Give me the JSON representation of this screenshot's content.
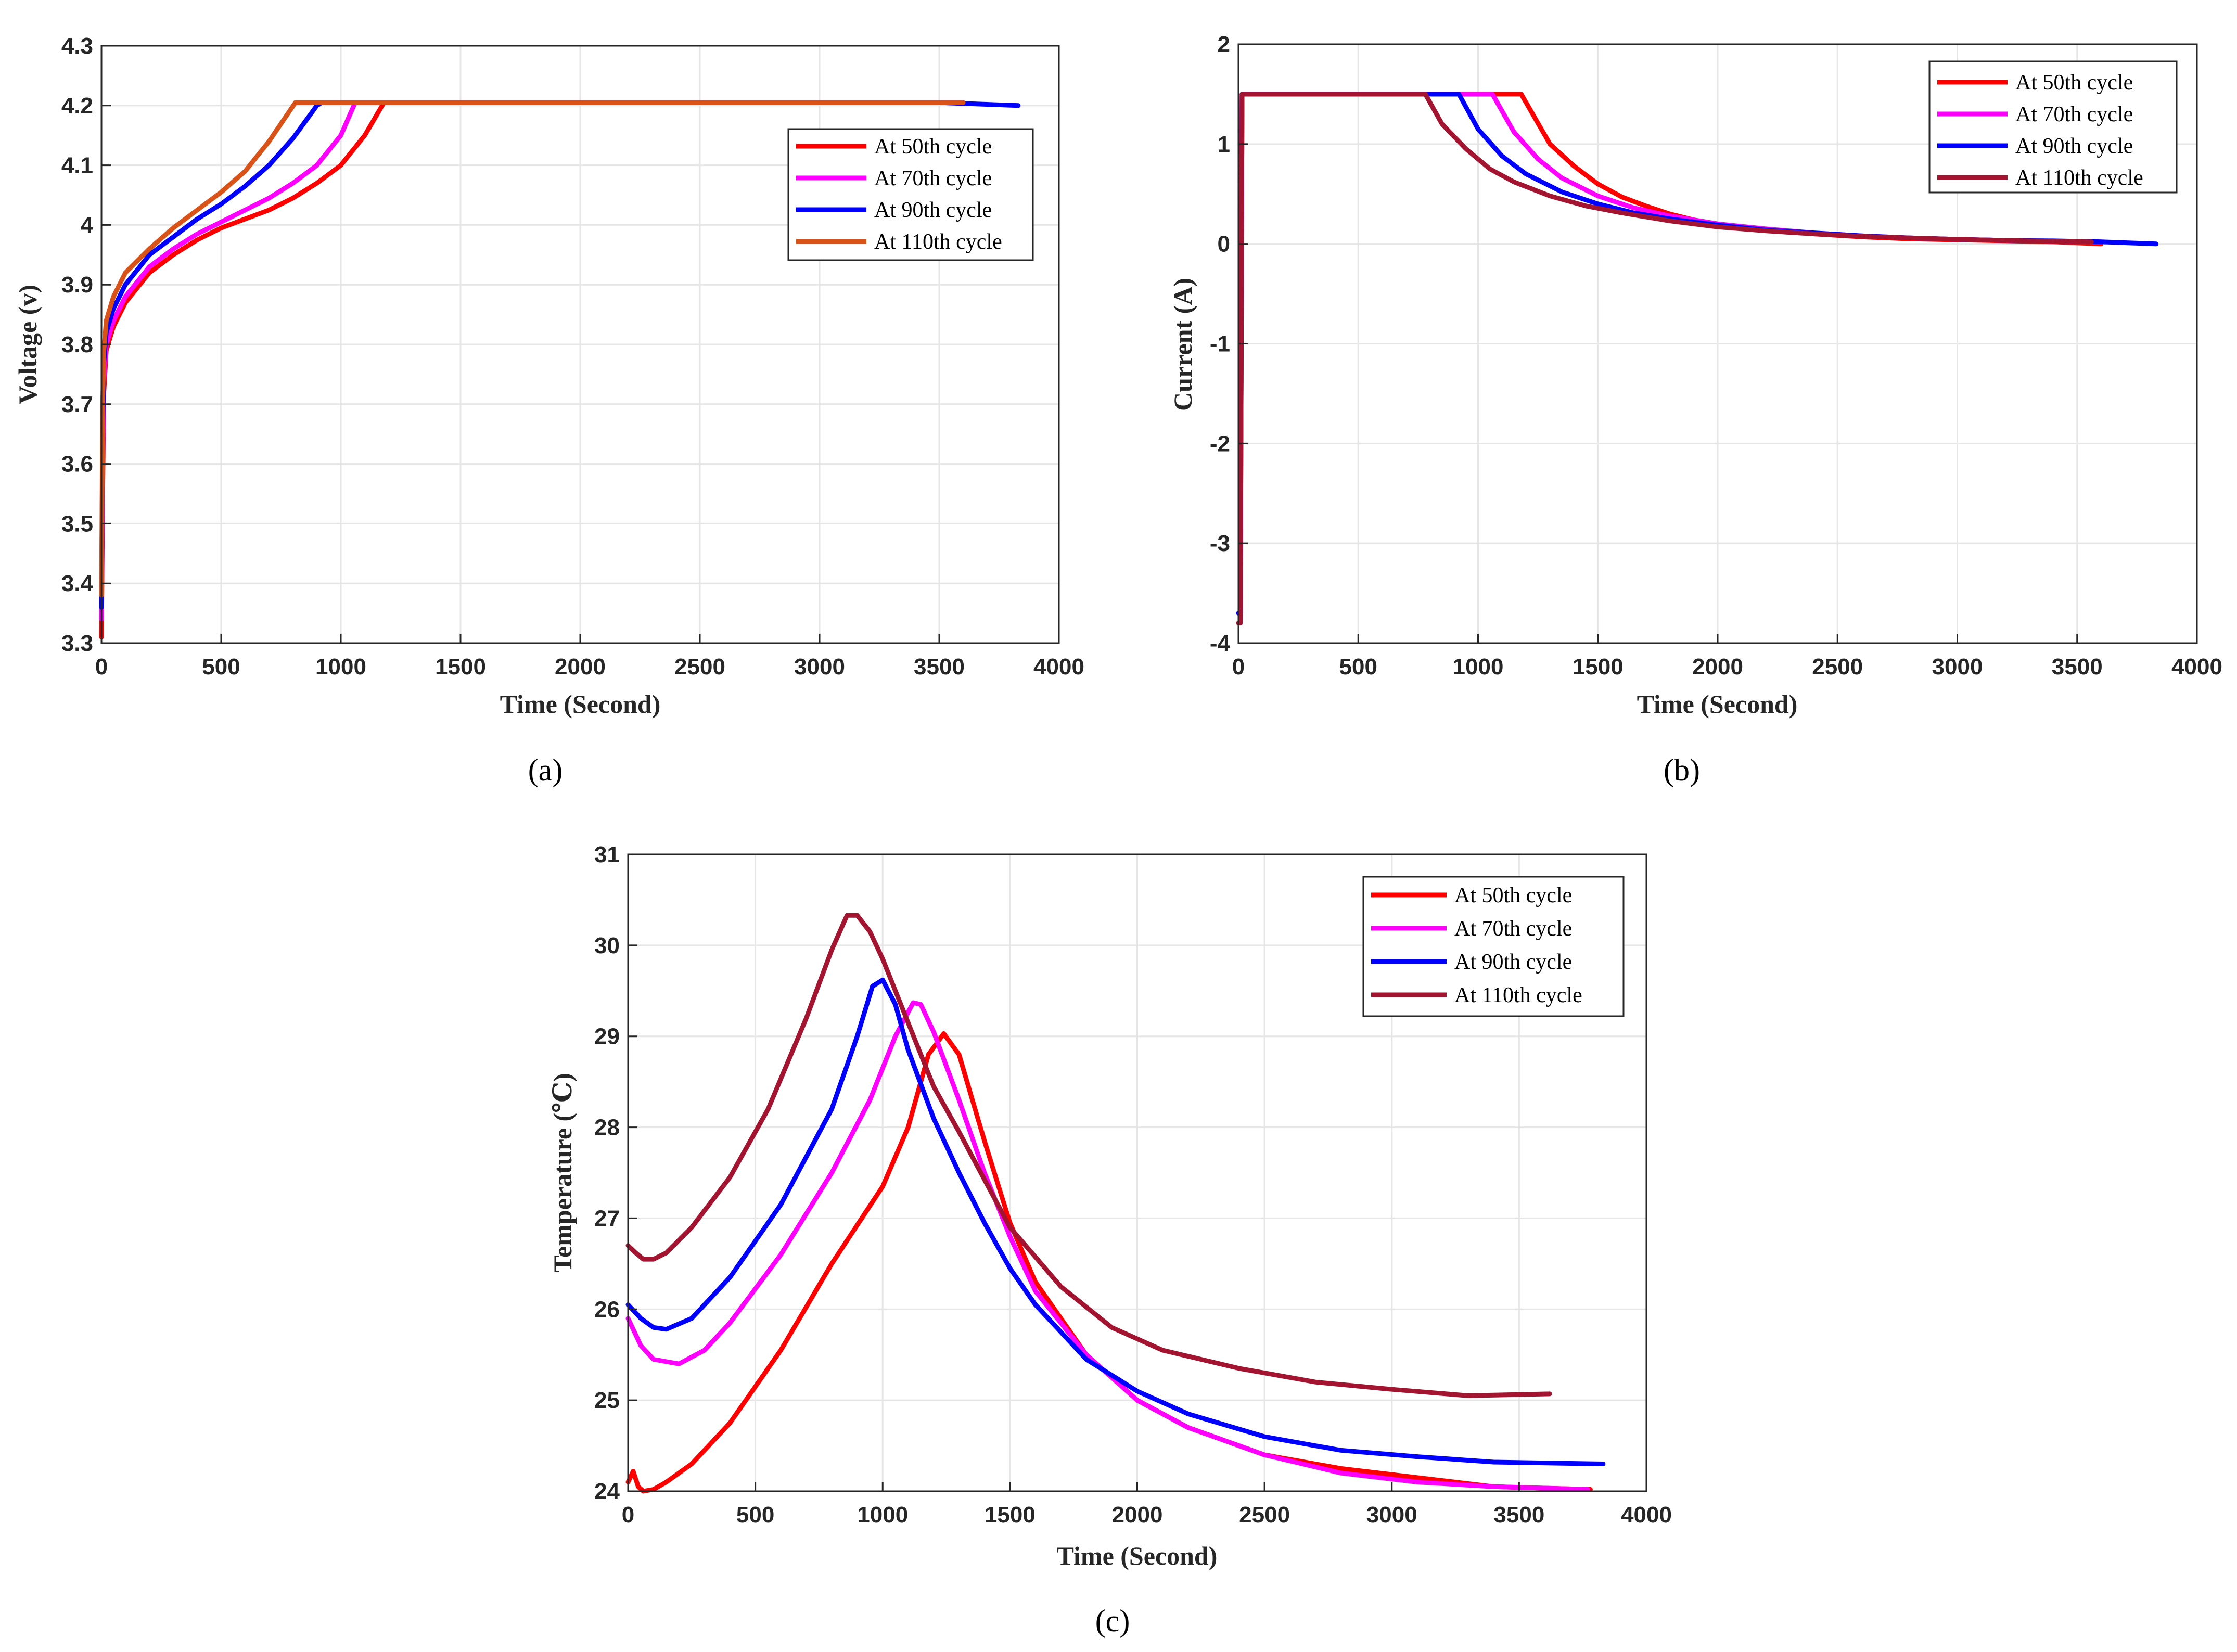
{
  "figure": {
    "captions": [
      "(a)",
      "(b)",
      "(c)"
    ]
  },
  "chart_data": [
    {
      "id": "a",
      "type": "line",
      "title": "",
      "xlabel": "Time (Second)",
      "ylabel": "Voltage (v)",
      "xlim": [
        0,
        4000
      ],
      "ylim": [
        3.3,
        4.3
      ],
      "xticks": [
        0,
        500,
        1000,
        1500,
        2000,
        2500,
        3000,
        3500,
        4000
      ],
      "yticks": [
        3.3,
        3.4,
        3.5,
        3.6,
        3.7,
        3.8,
        3.9,
        4,
        4.1,
        4.2,
        4.3
      ],
      "ytick_labels": [
        "3.3",
        "3.4",
        "3.5",
        "3.6",
        "3.7",
        "3.8",
        "3.9",
        "4",
        "4.1",
        "4.2",
        "4.3"
      ],
      "grid": true,
      "legend_position": "top-right",
      "series": [
        {
          "name": "At 50th cycle",
          "color": "#ff0000",
          "x": [
            0,
            5,
            10,
            20,
            50,
            100,
            200,
            300,
            400,
            500,
            600,
            700,
            800,
            900,
            1000,
            1100,
            1180,
            1500,
            2000,
            2500,
            3000,
            3500,
            3600
          ],
          "y": [
            3.31,
            3.55,
            3.72,
            3.79,
            3.83,
            3.87,
            3.92,
            3.95,
            3.975,
            3.995,
            4.01,
            4.025,
            4.045,
            4.07,
            4.1,
            4.15,
            4.205,
            4.205,
            4.205,
            4.205,
            4.205,
            4.205,
            4.205
          ]
        },
        {
          "name": "At 70th cycle",
          "color": "#ff00ff",
          "x": [
            0,
            5,
            10,
            20,
            50,
            100,
            200,
            300,
            400,
            500,
            600,
            700,
            800,
            900,
            1000,
            1060,
            1500,
            2000,
            2500,
            3000,
            3500,
            3600
          ],
          "y": [
            3.34,
            3.6,
            3.74,
            3.8,
            3.84,
            3.88,
            3.93,
            3.96,
            3.985,
            4.005,
            4.025,
            4.045,
            4.07,
            4.1,
            4.15,
            4.205,
            4.205,
            4.205,
            4.205,
            4.205,
            4.205,
            4.205
          ]
        },
        {
          "name": "At 90th cycle",
          "color": "#0000ff",
          "x": [
            0,
            5,
            10,
            20,
            50,
            100,
            200,
            300,
            400,
            500,
            600,
            700,
            800,
            900,
            920,
            1500,
            2000,
            2500,
            3000,
            3500,
            3830
          ],
          "y": [
            3.36,
            3.65,
            3.77,
            3.82,
            3.86,
            3.9,
            3.95,
            3.98,
            4.01,
            4.035,
            4.065,
            4.1,
            4.145,
            4.2,
            4.205,
            4.205,
            4.205,
            4.205,
            4.205,
            4.205,
            4.2
          ]
        },
        {
          "name": "At 110th cycle",
          "color": "#d95319",
          "x": [
            0,
            5,
            10,
            20,
            50,
            100,
            200,
            300,
            400,
            500,
            600,
            700,
            810,
            1500,
            2000,
            2500,
            3000,
            3500,
            3600
          ],
          "y": [
            3.38,
            3.7,
            3.79,
            3.84,
            3.88,
            3.92,
            3.96,
            3.995,
            4.025,
            4.055,
            4.09,
            4.14,
            4.205,
            4.205,
            4.205,
            4.205,
            4.205,
            4.205,
            4.205
          ]
        }
      ]
    },
    {
      "id": "b",
      "type": "line",
      "title": "",
      "xlabel": "Time (Second)",
      "ylabel": "Current (A)",
      "xlim": [
        0,
        4000
      ],
      "ylim": [
        -4,
        2
      ],
      "xticks": [
        0,
        500,
        1000,
        1500,
        2000,
        2500,
        3000,
        3500,
        4000
      ],
      "yticks": [
        -4,
        -3,
        -2,
        -1,
        0,
        1,
        2
      ],
      "ytick_labels": [
        "-4",
        "-3",
        "-2",
        "-1",
        "0",
        "1",
        "2"
      ],
      "grid": true,
      "legend_position": "top-right",
      "series": [
        {
          "name": "At 50th cycle",
          "color": "#ff0000",
          "x": [
            0,
            8,
            15,
            1180,
            1300,
            1400,
            1500,
            1600,
            1700,
            1800,
            1900,
            2000,
            2200,
            2400,
            2600,
            2800,
            3000,
            3200,
            3400,
            3600
          ],
          "y": [
            -3.7,
            -3.7,
            1.5,
            1.5,
            1.0,
            0.78,
            0.6,
            0.47,
            0.38,
            0.3,
            0.24,
            0.2,
            0.14,
            0.1,
            0.07,
            0.05,
            0.04,
            0.03,
            0.02,
            0.0
          ]
        },
        {
          "name": "At 70th cycle",
          "color": "#ff00ff",
          "x": [
            0,
            8,
            15,
            1060,
            1150,
            1250,
            1350,
            1500,
            1650,
            1800,
            2000,
            2200,
            2400,
            2600,
            2800,
            3000,
            3200,
            3400,
            3600
          ],
          "y": [
            -3.7,
            -3.7,
            1.5,
            1.5,
            1.12,
            0.85,
            0.66,
            0.48,
            0.36,
            0.28,
            0.2,
            0.15,
            0.11,
            0.08,
            0.06,
            0.045,
            0.035,
            0.025,
            0.02
          ]
        },
        {
          "name": "At 90th cycle",
          "color": "#0000ff",
          "x": [
            0,
            8,
            15,
            920,
            1000,
            1100,
            1200,
            1350,
            1500,
            1650,
            1800,
            2000,
            2200,
            2400,
            2600,
            2800,
            3000,
            3200,
            3400,
            3600,
            3830
          ],
          "y": [
            -3.7,
            -3.7,
            1.5,
            1.5,
            1.15,
            0.88,
            0.7,
            0.52,
            0.4,
            0.31,
            0.25,
            0.19,
            0.14,
            0.11,
            0.08,
            0.06,
            0.045,
            0.035,
            0.03,
            0.02,
            0.0
          ]
        },
        {
          "name": "At 110th cycle",
          "color": "#a2142f",
          "x": [
            0,
            8,
            15,
            780,
            850,
            950,
            1050,
            1150,
            1300,
            1450,
            1600,
            1800,
            2000,
            2200,
            2400,
            2600,
            2800,
            3000,
            3200,
            3400,
            3560
          ],
          "y": [
            -3.8,
            -3.8,
            1.5,
            1.5,
            1.2,
            0.95,
            0.75,
            0.62,
            0.48,
            0.38,
            0.31,
            0.23,
            0.17,
            0.13,
            0.1,
            0.075,
            0.06,
            0.045,
            0.035,
            0.025,
            0.02
          ]
        }
      ]
    },
    {
      "id": "c",
      "type": "line",
      "title": "",
      "xlabel": "Time (Second)",
      "ylabel": "Temperature (℃)",
      "xlim": [
        0,
        4000
      ],
      "ylim": [
        24,
        31
      ],
      "xticks": [
        0,
        500,
        1000,
        1500,
        2000,
        2500,
        3000,
        3500,
        4000
      ],
      "yticks": [
        24,
        25,
        26,
        27,
        28,
        29,
        30,
        31
      ],
      "ytick_labels": [
        "24",
        "25",
        "26",
        "27",
        "28",
        "29",
        "30",
        "31"
      ],
      "grid": true,
      "legend_position": "top-right",
      "series": [
        {
          "name": "At 50th cycle",
          "color": "#ff0000",
          "x": [
            0,
            20,
            40,
            60,
            100,
            150,
            250,
            400,
            600,
            800,
            1000,
            1100,
            1180,
            1240,
            1300,
            1400,
            1500,
            1600,
            1800,
            2000,
            2200,
            2500,
            2800,
            3100,
            3400,
            3780
          ],
          "y": [
            24.1,
            24.22,
            24.05,
            24.0,
            24.02,
            24.1,
            24.3,
            24.75,
            25.55,
            26.5,
            27.35,
            28.0,
            28.8,
            29.03,
            28.8,
            27.85,
            26.95,
            26.3,
            25.5,
            25.0,
            24.7,
            24.4,
            24.25,
            24.15,
            24.05,
            24.02
          ]
        },
        {
          "name": "At 70th cycle",
          "color": "#ff00ff",
          "x": [
            0,
            50,
            100,
            200,
            300,
            400,
            600,
            800,
            950,
            1050,
            1120,
            1150,
            1200,
            1300,
            1400,
            1500,
            1600,
            1800,
            2000,
            2200,
            2500,
            2800,
            3100,
            3400,
            3770
          ],
          "y": [
            25.9,
            25.6,
            25.45,
            25.4,
            25.55,
            25.85,
            26.6,
            27.5,
            28.3,
            29.0,
            29.37,
            29.35,
            29.05,
            28.3,
            27.5,
            26.8,
            26.2,
            25.5,
            25.0,
            24.7,
            24.4,
            24.2,
            24.1,
            24.05,
            24.02
          ]
        },
        {
          "name": "At 90th cycle",
          "color": "#0000ff",
          "x": [
            0,
            50,
            100,
            150,
            250,
            400,
            600,
            800,
            900,
            960,
            1000,
            1050,
            1100,
            1200,
            1300,
            1400,
            1500,
            1600,
            1800,
            2000,
            2200,
            2500,
            2800,
            3100,
            3400,
            3830
          ],
          "y": [
            26.05,
            25.9,
            25.8,
            25.78,
            25.9,
            26.35,
            27.15,
            28.2,
            29.0,
            29.55,
            29.62,
            29.35,
            28.85,
            28.1,
            27.5,
            26.95,
            26.45,
            26.05,
            25.45,
            25.1,
            24.85,
            24.6,
            24.45,
            24.38,
            24.32,
            24.3
          ]
        },
        {
          "name": "At 110th cycle",
          "color": "#a2142f",
          "x": [
            0,
            30,
            60,
            100,
            150,
            250,
            400,
            550,
            700,
            800,
            860,
            900,
            950,
            1000,
            1100,
            1200,
            1300,
            1500,
            1700,
            1900,
            2100,
            2400,
            2700,
            3000,
            3300,
            3620
          ],
          "y": [
            26.7,
            26.62,
            26.55,
            26.55,
            26.62,
            26.9,
            27.45,
            28.2,
            29.2,
            29.95,
            30.33,
            30.33,
            30.15,
            29.85,
            29.15,
            28.45,
            27.95,
            26.9,
            26.25,
            25.8,
            25.55,
            25.35,
            25.2,
            25.12,
            25.05,
            25.07
          ]
        }
      ]
    }
  ]
}
